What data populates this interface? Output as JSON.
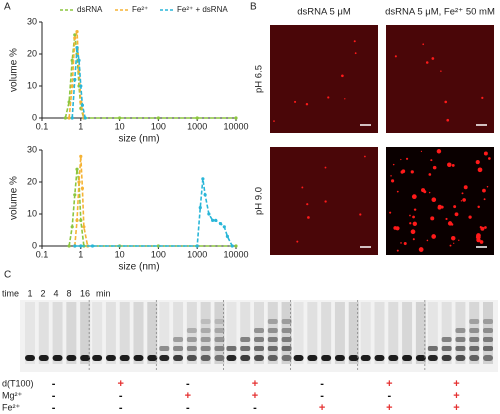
{
  "panels": {
    "a": "A",
    "b": "B",
    "c": "C"
  },
  "chart_data": [
    {
      "type": "line",
      "ylabel": "volume %",
      "xlabel": "size (nm)",
      "log_x": true,
      "legend": "top",
      "xlim": [
        0.1,
        10000
      ],
      "xticks": [
        0.1,
        1,
        10,
        100,
        1000,
        10000
      ],
      "ylim": [
        0,
        30
      ],
      "yticks": [
        0,
        10,
        20,
        30
      ],
      "series": [
        {
          "name": "dsRNA",
          "color": "#8cc63f",
          "x": [
            0.4,
            0.5,
            0.6,
            0.7,
            0.8,
            0.9,
            1.0,
            1.2,
            10,
            100,
            1000,
            10000
          ],
          "values": [
            0,
            5,
            18,
            26,
            20,
            10,
            3,
            0,
            0,
            0,
            0,
            0
          ]
        },
        {
          "name": "Fe²⁺",
          "color": "#f5b335",
          "x": [
            0.5,
            0.6,
            0.7,
            0.8,
            0.9,
            1.0,
            1.2
          ],
          "values": [
            0,
            10,
            25,
            27,
            15,
            5,
            0
          ]
        },
        {
          "name": "Fe²⁺ + dsRNA",
          "color": "#29b6d8",
          "x": [
            0.6,
            0.7,
            0.8,
            0.9,
            1.0,
            1.1,
            1.3
          ],
          "values": [
            0,
            12,
            22,
            18,
            10,
            4,
            0
          ]
        }
      ]
    },
    {
      "type": "line",
      "ylabel": "volume %",
      "xlabel": "size (nm)",
      "log_x": true,
      "xlim": [
        0.1,
        10000
      ],
      "xticks": [
        0.1,
        1,
        10,
        100,
        1000,
        10000
      ],
      "ylim": [
        0,
        30
      ],
      "yticks": [
        0,
        10,
        20,
        30
      ],
      "series": [
        {
          "color": "#8cc63f",
          "x": [
            0.5,
            0.6,
            0.7,
            0.8,
            0.9,
            1.0,
            1.2,
            10,
            100,
            1000,
            10000
          ],
          "values": [
            0,
            6,
            16,
            24,
            20,
            8,
            0,
            0,
            0,
            0,
            0
          ]
        },
        {
          "color": "#f5b335",
          "x": [
            0.7,
            0.8,
            0.9,
            1.0,
            1.1,
            1.2,
            1.5
          ],
          "values": [
            0,
            8,
            20,
            28,
            18,
            6,
            0
          ]
        },
        {
          "color": "#29b6d8",
          "x": [
            0.7,
            1,
            2,
            1000,
            1200,
            1400,
            1600,
            2000,
            2500,
            3000,
            4000,
            5000,
            6000,
            8000
          ],
          "values": [
            0,
            0,
            0,
            0,
            12,
            21,
            16,
            10,
            8,
            8,
            7,
            6,
            3,
            0
          ]
        }
      ]
    }
  ],
  "images": {
    "columns": [
      "dsRNA 5 μM",
      "dsRNA 5 μM, Fe²⁺ 50 mM"
    ],
    "rows": [
      "pH 6.5",
      "pH 9.0"
    ]
  },
  "gel": {
    "time_label": "time",
    "times": [
      "1",
      "2",
      "4",
      "8",
      "16"
    ],
    "unit": "min",
    "conditions": [
      "d(T100)",
      "Mg²⁺",
      "Fe²⁺"
    ],
    "groups": [
      [
        "-",
        "-",
        "-"
      ],
      [
        "+",
        "-",
        "-"
      ],
      [
        "-",
        "+",
        "-"
      ],
      [
        "+",
        "+",
        "-"
      ],
      [
        "-",
        "-",
        "+"
      ],
      [
        "+",
        "-",
        "+"
      ],
      [
        "+",
        "+",
        "+"
      ]
    ]
  }
}
